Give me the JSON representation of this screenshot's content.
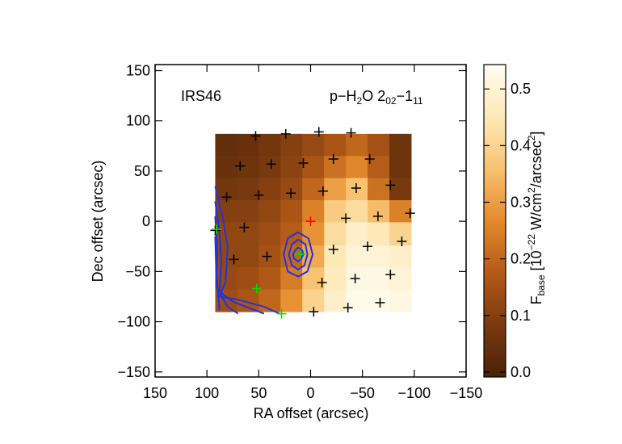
{
  "chart_data": {
    "type": "heatmap",
    "xlabel": "RA offset (arcsec)",
    "ylabel": "Dec offset (arcsec)",
    "xlim": [
      150,
      -150
    ],
    "ylim": [
      -155,
      156
    ],
    "xticks": [
      150,
      100,
      50,
      0,
      {
        "value": -50,
        "label": "−50"
      },
      {
        "value": -100,
        "label": "−100"
      },
      {
        "value": -150,
        "label": "−150"
      }
    ],
    "yticks": [
      {
        "value": -150,
        "label": "−150"
      },
      {
        "value": -100,
        "label": "−100"
      },
      {
        "value": -50,
        "label": "−50"
      },
      0,
      50,
      100,
      150
    ],
    "annotations": {
      "left": "IRS46",
      "right": [
        "p−H",
        "2",
        "O 2",
        "02",
        "−1",
        "11"
      ]
    },
    "xbins": [
      92,
      71,
      50,
      29,
      8,
      -13,
      -34,
      -55,
      -76,
      -97
    ],
    "ybins": [
      87,
      65,
      43,
      21,
      -1,
      -24,
      -46,
      -68,
      -90
    ],
    "z": [
      [
        0.04,
        0.05,
        0.07,
        0.1,
        0.13,
        0.16,
        0.2,
        0.15,
        0.06
      ],
      [
        0.05,
        0.06,
        0.08,
        0.11,
        0.16,
        0.22,
        0.26,
        0.18,
        0.06
      ],
      [
        0.07,
        0.08,
        0.1,
        0.13,
        0.2,
        0.3,
        0.36,
        0.22,
        0.08
      ],
      [
        0.1,
        0.1,
        0.12,
        0.16,
        0.25,
        0.38,
        0.42,
        0.35,
        0.25
      ],
      [
        0.12,
        0.12,
        0.14,
        0.18,
        0.28,
        0.42,
        0.48,
        0.45,
        0.4
      ],
      [
        0.12,
        0.12,
        0.15,
        0.2,
        0.32,
        0.45,
        0.5,
        0.5,
        0.48
      ],
      [
        0.13,
        0.14,
        0.17,
        0.24,
        0.36,
        0.46,
        0.52,
        0.52,
        0.5
      ],
      [
        0.14,
        0.16,
        0.2,
        0.28,
        0.4,
        0.48,
        0.53,
        0.53,
        0.52
      ]
    ],
    "colorbar": {
      "label": [
        "F",
        "base",
        " [10",
        "−22",
        " W/cm",
        "2",
        "/arcsec",
        "2",
        "]"
      ],
      "clim": [
        -0.0085,
        0.543
      ],
      "ticks": [
        {
          "value": 0,
          "label": "0.0"
        },
        0.1,
        0.2,
        0.3,
        0.4,
        0.5
      ],
      "colormap": [
        "#4a2106",
        "#7a3a0e",
        "#b45a18",
        "#e48a2c",
        "#f8c270",
        "#fde9b8",
        "#fffcf0"
      ]
    },
    "series": [
      {
        "color": "#000000",
        "x": [
          53,
          24,
          -8,
          -39,
          68,
          38,
          7,
          -22,
          -57,
          81,
          50,
          19,
          -12,
          -44,
          -77,
          92,
          64,
          -34,
          -65,
          -96,
          74,
          42,
          -22,
          -55,
          -88,
          -11,
          -43,
          -77,
          -3,
          -36,
          -67
        ],
        "y": [
          85,
          87,
          89,
          88,
          55,
          57,
          58,
          62,
          62,
          24,
          26,
          28,
          30,
          33,
          36,
          -9,
          -6,
          3,
          5,
          8,
          -38,
          -35,
          -28,
          -25,
          -20,
          -61,
          -57,
          -53,
          -90,
          -86,
          -81
        ]
      },
      {
        "color": "#ff0000",
        "x": [
          0
        ],
        "y": [
          0
        ]
      },
      {
        "color": "#00dd00",
        "x": [
          52,
          10,
          91,
          28
        ],
        "y": [
          -67,
          -33,
          -8,
          -92
        ]
      }
    ],
    "contour_color": "#2233dd",
    "contours": [
      {
        "x": [
          92,
          85,
          80,
          82,
          88,
          70,
          45,
          30
        ],
        "y": [
          35,
          5,
          -25,
          -60,
          -75,
          -78,
          -85,
          -92
        ]
      },
      {
        "x": [
          92,
          88,
          86,
          88,
          75,
          55,
          45
        ],
        "y": [
          20,
          -10,
          -40,
          -70,
          -80,
          -88,
          -92
        ]
      },
      {
        "x": [
          92,
          90,
          91,
          80,
          70
        ],
        "y": [
          5,
          -30,
          -65,
          -85,
          -92
        ]
      },
      {
        "x": [
          92,
          91,
          88
        ],
        "y": [
          -15,
          -50,
          -88
        ]
      },
      {
        "x": [
          12,
          2,
          -2,
          3,
          12,
          22,
          26,
          22,
          12
        ],
        "y": [
          -11,
          -17,
          -33,
          -50,
          -55,
          -50,
          -33,
          -17,
          -11
        ]
      },
      {
        "x": [
          12,
          5,
          3,
          6,
          12,
          18,
          21,
          18,
          12
        ],
        "y": [
          -18,
          -23,
          -33,
          -44,
          -48,
          -44,
          -33,
          -23,
          -18
        ]
      },
      {
        "x": [
          12,
          8,
          7,
          9,
          12,
          16,
          17,
          15,
          12
        ],
        "y": [
          -26,
          -29,
          -33,
          -37,
          -40,
          -37,
          -33,
          -29,
          -26
        ]
      }
    ]
  }
}
